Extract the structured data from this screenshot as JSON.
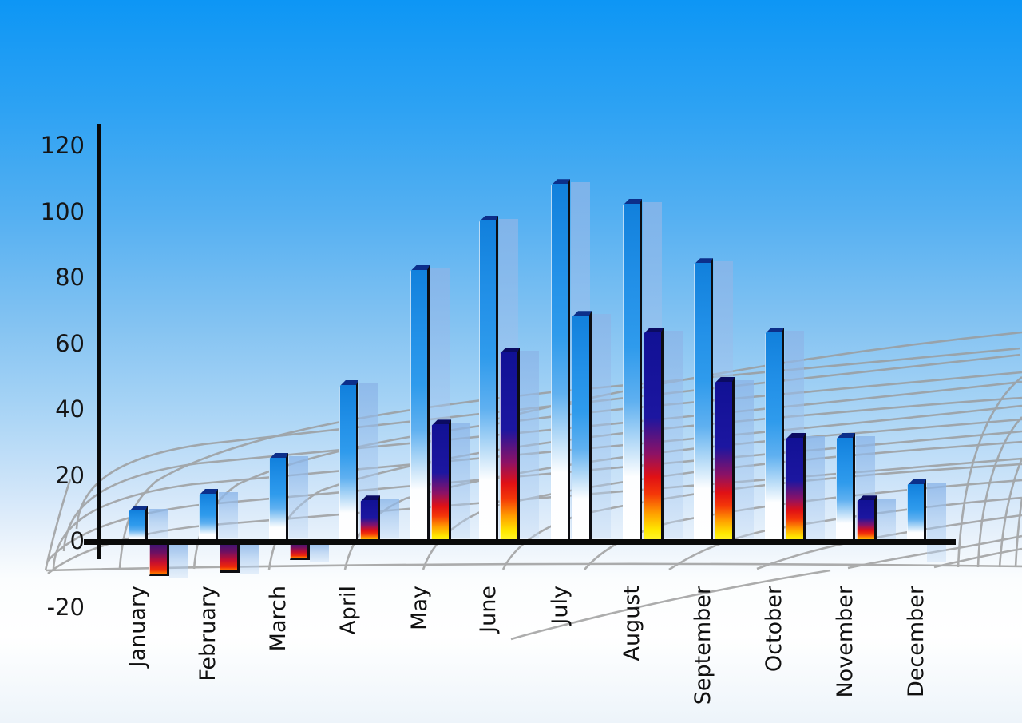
{
  "chart_data": {
    "type": "bar",
    "title": "",
    "categories": [
      "January",
      "February",
      "March",
      "April",
      "May",
      "June",
      "July",
      "August",
      "September",
      "October",
      "November",
      "December"
    ],
    "series": [
      {
        "name": "primary-blue-bars",
        "values": [
          11,
          16,
          27,
          49,
          84,
          99,
          110,
          104,
          86,
          65,
          33,
          19
        ]
      },
      {
        "name": "secondary-flame-bars",
        "values": [
          -10,
          -9,
          -5,
          14,
          37,
          59,
          70,
          65,
          50,
          33,
          14,
          null
        ],
        "bar_styles": [
          "flame",
          "flame",
          "flame",
          "flame",
          "flame",
          "flame",
          "blue",
          "flame",
          "flame",
          "flame",
          "flame",
          null
        ]
      }
    ],
    "y_axis": {
      "ticks": [
        120,
        100,
        80,
        60,
        40,
        20,
        0,
        -20
      ],
      "min": -20,
      "max": 120
    },
    "x_axis": {
      "labels_rotated_degrees": -90
    },
    "legend": "none",
    "grid": "gray curved perspective floor mesh",
    "background": "sky blue gradient fading to white"
  },
  "colors": {
    "sky_top": "#0d96f5",
    "bar_blue": "#1b8ce6",
    "bar_blue_cap": "#0c2f8a",
    "flame_navy": "#111195",
    "flame_red": "#e01115",
    "flame_yellow": "#ffff40",
    "echo_blue": "#b9d4f2",
    "axis_black": "#0a0a0a",
    "grid_gray": "#9b9b9b",
    "label_text": "#101010"
  }
}
